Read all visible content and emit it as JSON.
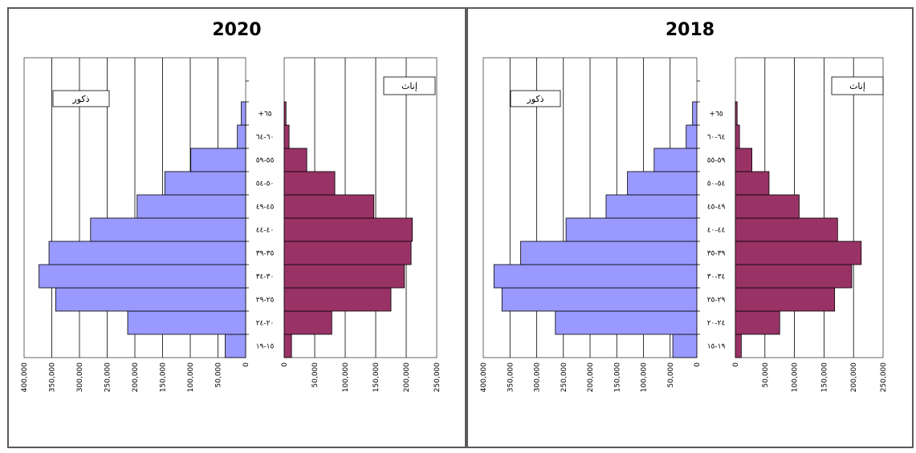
{
  "colors": {
    "male": "#9999ff",
    "female": "#993366",
    "grid": "#000000",
    "border": "#5a5a5a"
  },
  "chart_data": [
    {
      "type": "bar",
      "orientation": "horizontal",
      "title": "2020",
      "left_legend": "ذكور",
      "right_legend": "إناث",
      "categories": [
        "١٥-١٩",
        "٢٠-٢٤",
        "٢٥-٢٩",
        "٣٠-٣٤",
        "٣٥-٣٩",
        "٤٠-٤٤",
        "٤٥-٤٩",
        "٥٠-٥٤",
        "٥٥-٥٩",
        "٦٠-٦٤",
        "+٦٥"
      ],
      "series": [
        {
          "name": "ذكور",
          "values": [
            37000,
            213000,
            343000,
            373000,
            355000,
            280000,
            196000,
            146000,
            99000,
            15000,
            8000
          ]
        },
        {
          "name": "إناث",
          "values": [
            12000,
            78000,
            175000,
            197000,
            208000,
            210000,
            147000,
            83000,
            37000,
            8000,
            3000
          ]
        }
      ],
      "male_ticks": [
        "400,000",
        "350,000",
        "300,000",
        "250,000",
        "200,000",
        "150,000",
        "100,000",
        "50,000",
        "0"
      ],
      "female_ticks": [
        "0",
        "50,000",
        "100,000",
        "150,000",
        "200,000",
        "250,000"
      ],
      "male_xlim": [
        0,
        400000
      ],
      "female_xlim": [
        0,
        250000
      ]
    },
    {
      "type": "bar",
      "orientation": "horizontal",
      "title": "2018",
      "left_legend": "ذكور",
      "right_legend": "إناث",
      "categories": [
        "١٩-١٥",
        "٢٤-٢٠",
        "٢٩-٢٥",
        "٣٤-٣٠",
        "٣٩-٣٥",
        "٤٤-٤٠",
        "٤٩-٤٥",
        "٥٤-٥٠",
        "٥٩-٥٥",
        "٦٤-٦٠",
        "+٦٥"
      ],
      "series": [
        {
          "name": "ذكور",
          "values": [
            45000,
            265000,
            365000,
            380000,
            330000,
            245000,
            170000,
            130000,
            80000,
            20000,
            8000
          ]
        },
        {
          "name": "إناث",
          "values": [
            10000,
            75000,
            168000,
            197000,
            213000,
            173000,
            108000,
            57000,
            28000,
            7000,
            3000
          ]
        }
      ],
      "male_ticks": [
        "400,000",
        "350,000",
        "300,000",
        "250,000",
        "200,000",
        "150,000",
        "100,000",
        "50,000",
        "0"
      ],
      "female_ticks": [
        "0",
        "50,000",
        "100,000",
        "150,000",
        "200,000",
        "250,000"
      ],
      "male_xlim": [
        0,
        400000
      ],
      "female_xlim": [
        0,
        250000
      ]
    }
  ]
}
